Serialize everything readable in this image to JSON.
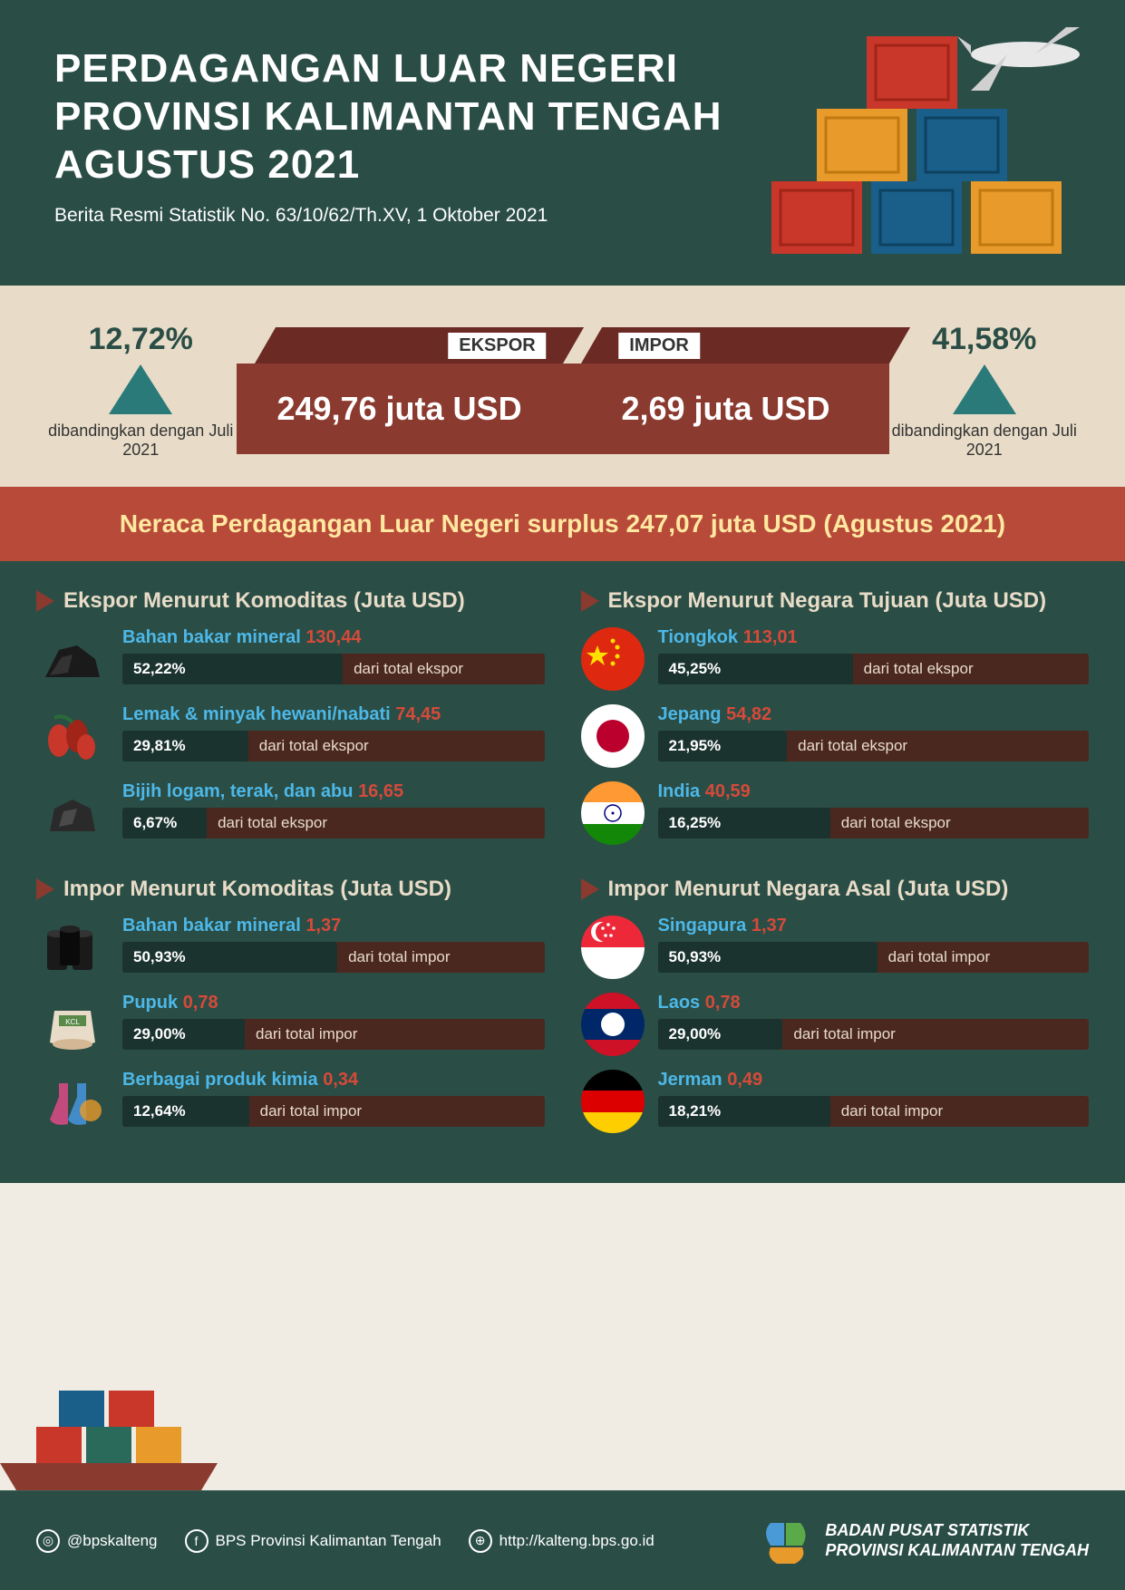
{
  "header": {
    "title_line1": "PERDAGANGAN LUAR NEGERI",
    "title_line2": "PROVINSI KALIMANTAN TENGAH",
    "title_line3": "AGUSTUS 2021",
    "subtitle": "Berita Resmi Statistik No. 63/10/62/Th.XV, 1 Oktober 2021"
  },
  "colors": {
    "header_bg": "#2a4d45",
    "cream": "#e8dcc8",
    "banner_bg": "#b84a3a",
    "banner_text": "#ffe8a0",
    "box_top": "#6b2a24",
    "box_front": "#8b3a30",
    "triangle": "#2a7a7a",
    "bar_bg": "#4a2820",
    "bar_fill": "#1a332e",
    "label_blue": "#4db8e8",
    "val_red": "#d64a3a"
  },
  "stats": {
    "ekspor": {
      "tag": "EKSPOR",
      "value": "249,76 juta USD",
      "pct": "12,72%",
      "comp": "dibandingkan dengan Juli 2021"
    },
    "impor": {
      "tag": "IMPOR",
      "value": "2,69 juta USD",
      "pct": "41,58%",
      "comp": "dibandingkan dengan Juli 2021"
    }
  },
  "banner": "Neraca Perdagangan Luar Negeri surplus 247,07 juta USD (Agustus 2021)",
  "sections": {
    "ekspor_komoditas": {
      "title": "Ekspor Menurut Komoditas (Juta USD)",
      "items": [
        {
          "label": "Bahan bakar mineral",
          "value": "130,44",
          "pct": "52,22%",
          "pct_width": 52.22,
          "sub": "dari total ekspor",
          "icon": "coal"
        },
        {
          "label": "Lemak & minyak hewani/nabati",
          "value": "74,45",
          "pct": "29,81%",
          "pct_width": 29.81,
          "sub": "dari total ekspor",
          "icon": "palm"
        },
        {
          "label": "Bijih logam, terak, dan abu",
          "value": "16,65",
          "pct": "6,67%",
          "pct_width": 20,
          "sub": "dari total ekspor",
          "icon": "ore"
        }
      ]
    },
    "ekspor_negara": {
      "title": "Ekspor Menurut Negara Tujuan (Juta USD)",
      "items": [
        {
          "label": "Tiongkok",
          "value": "113,01",
          "pct": "45,25%",
          "pct_width": 45.25,
          "sub": "dari total ekspor",
          "flag": "china"
        },
        {
          "label": "Jepang",
          "value": "54,82",
          "pct": "21,95%",
          "pct_width": 30,
          "sub": "dari total ekspor",
          "flag": "japan"
        },
        {
          "label": "India",
          "value": "40,59",
          "pct": "16,25%",
          "pct_width": 40,
          "sub": "dari total ekspor",
          "flag": "india"
        }
      ]
    },
    "impor_komoditas": {
      "title": "Impor Menurut Komoditas (Juta USD)",
      "items": [
        {
          "label": "Bahan bakar mineral",
          "value": "1,37",
          "pct": "50,93%",
          "pct_width": 50.93,
          "sub": "dari total impor",
          "icon": "barrel"
        },
        {
          "label": "Pupuk",
          "value": "0,78",
          "pct": "29,00%",
          "pct_width": 29,
          "sub": "dari total impor",
          "icon": "sack"
        },
        {
          "label": "Berbagai produk kimia",
          "value": "0,34",
          "pct": "12,64%",
          "pct_width": 30,
          "sub": "dari total impor",
          "icon": "flask"
        }
      ]
    },
    "impor_negara": {
      "title": "Impor Menurut Negara Asal (Juta USD)",
      "items": [
        {
          "label": "Singapura",
          "value": "1,37",
          "pct": "50,93%",
          "pct_width": 50.93,
          "sub": "dari total impor",
          "flag": "singapore"
        },
        {
          "label": "Laos",
          "value": "0,78",
          "pct": "29,00%",
          "pct_width": 29,
          "sub": "dari total impor",
          "flag": "laos"
        },
        {
          "label": "Jerman",
          "value": "0,49",
          "pct": "18,21%",
          "pct_width": 40,
          "sub": "dari total impor",
          "flag": "germany"
        }
      ]
    }
  },
  "footer": {
    "instagram": "@bpskalteng",
    "facebook": "BPS Provinsi Kalimantan Tengah",
    "web": "http://kalteng.bps.go.id",
    "org_line1": "BADAN PUSAT STATISTIK",
    "org_line2": "PROVINSI KALIMANTAN TENGAH"
  }
}
